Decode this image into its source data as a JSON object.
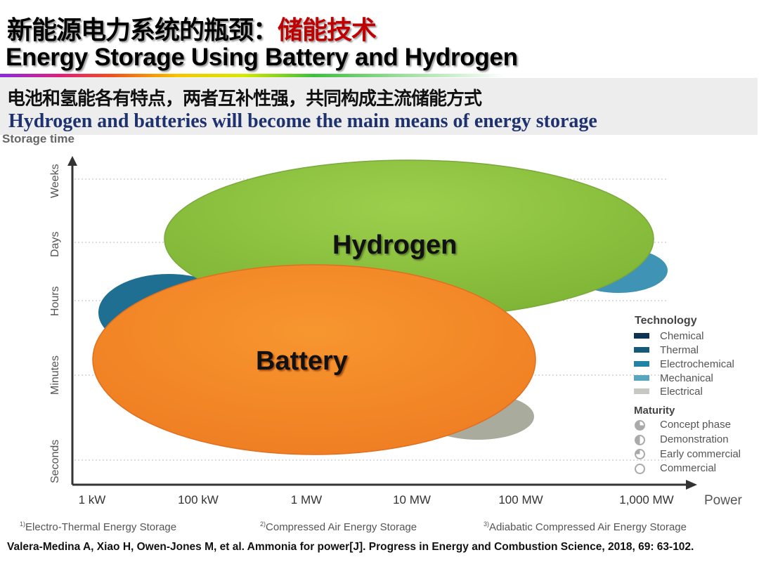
{
  "title": {
    "cn_main": "新能源电力系统的瓶颈：",
    "cn_highlight": "储能技术",
    "en": "Energy Storage Using Battery and Hydrogen"
  },
  "subtitle": {
    "cn": "电池和氢能各有特点，两者互补性强，共同构成主流储能方式",
    "en": "Hydrogen and batteries will become the main means of energy storage"
  },
  "diagram": {
    "y_axis_label": "Storage time",
    "y_ticks": [
      "Weeks",
      "Days",
      "Hours",
      "Minutes",
      "Seconds"
    ],
    "x_axis_label": "Power",
    "x_ticks": [
      "1 kW",
      "100 kW",
      "1 MW",
      "10 MW",
      "100 MW",
      "1,000 MW"
    ],
    "regions": [
      {
        "label": "Hydrogen",
        "color": "#8cc43e"
      },
      {
        "label": "Battery",
        "color": "#f38a2a"
      }
    ],
    "legend": {
      "technology_title": "Technology",
      "technology": [
        {
          "label": "Chemical",
          "color": "#0d3350"
        },
        {
          "label": "Thermal",
          "color": "#165a78"
        },
        {
          "label": "Electrochemical",
          "color": "#2282a5"
        },
        {
          "label": "Mechanical",
          "color": "#5ba4bd"
        },
        {
          "label": "Electrical",
          "color": "#c6c9c2"
        }
      ],
      "maturity_title": "Maturity",
      "maturity": [
        "Concept phase",
        "Demonstration",
        "Early commercial",
        "Commercial"
      ]
    }
  },
  "footnotes": [
    {
      "num": "1)",
      "text": "Electro-Thermal Energy Storage"
    },
    {
      "num": "2)",
      "text": "Compressed Air Energy Storage"
    },
    {
      "num": "3)",
      "text": "Adiabatic Compressed Air Energy Storage"
    }
  ],
  "citation": "Valera-Medina A, Xiao H, Owen-Jones M, et al. Ammonia for power[J]. Progress in Energy and Combustion Science, 2018, 69: 63-102."
}
